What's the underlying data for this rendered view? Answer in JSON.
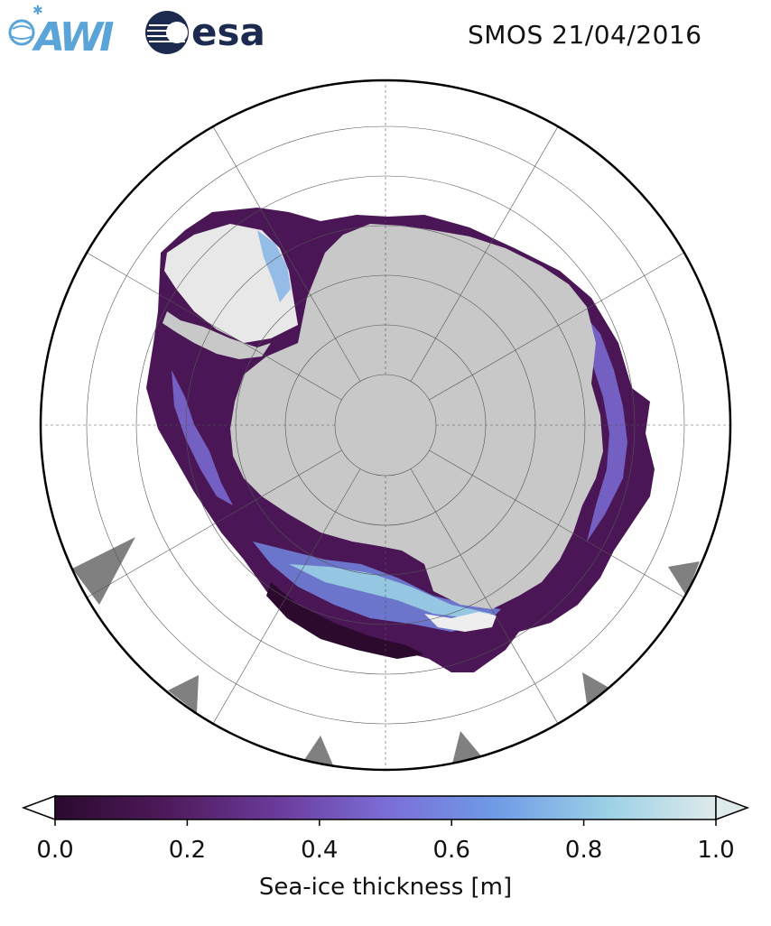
{
  "header": {
    "title": "SMOS 21/04/2016",
    "logos": [
      {
        "text": "AWI",
        "icon": "awi-logo-icon",
        "color": "#5ba4d8"
      },
      {
        "text": "esa",
        "icon": "esa-logo-icon",
        "color": "#1b2a4e"
      }
    ]
  },
  "map": {
    "projection": "south-polar-stereographic",
    "land_color": "#c8c8c8",
    "ice_shelf_color": "#e8e8e8",
    "no_data_color": "#808080",
    "ocean_color": "#ffffff"
  },
  "colorbar": {
    "label": "Sea-ice thickness [m]",
    "range": [
      0.0,
      1.0
    ],
    "ticks": [
      "0.0",
      "0.2",
      "0.4",
      "0.6",
      "0.8",
      "1.0"
    ],
    "extend": "both",
    "colormap_stops": [
      "#2b0a2e",
      "#4e1a5a",
      "#6a3a99",
      "#7b6dd6",
      "#6f9be6",
      "#9ad0e6",
      "#dfeaea"
    ]
  }
}
